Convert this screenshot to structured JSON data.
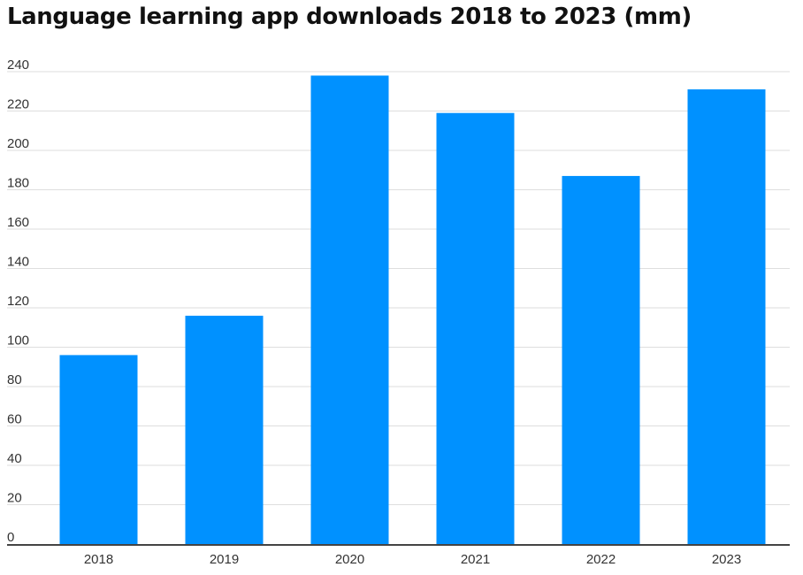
{
  "chart_data": {
    "type": "bar",
    "title": "Language learning app downloads 2018 to 2023 (mm)",
    "xlabel": "",
    "ylabel": "",
    "categories": [
      "2018",
      "2019",
      "2020",
      "2021",
      "2022",
      "2023"
    ],
    "values": [
      96,
      116,
      238,
      219,
      187,
      231
    ],
    "ylim": [
      0,
      240
    ],
    "yticks": [
      "0",
      "20",
      "40",
      "60",
      "80",
      "100",
      "120",
      "140",
      "160",
      "180",
      "200",
      "220",
      "240"
    ],
    "grid": true,
    "legend": "none",
    "bar_color": "#0091FF"
  }
}
